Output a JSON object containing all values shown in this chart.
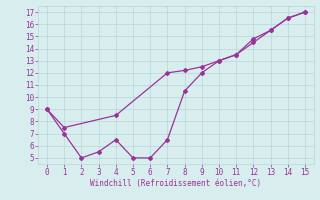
{
  "line1_x": [
    0,
    1,
    2,
    3,
    4,
    5,
    6,
    7,
    8,
    9,
    10,
    11,
    12,
    13,
    14,
    15
  ],
  "line1_y": [
    9,
    7,
    5,
    5.5,
    6.5,
    5,
    5,
    6.5,
    10.5,
    12,
    13,
    13.5,
    14.5,
    15.5,
    16.5,
    17
  ],
  "line2_x": [
    0,
    1,
    4,
    7,
    8,
    9,
    10,
    11,
    12,
    13,
    14,
    15
  ],
  "line2_y": [
    9,
    7.5,
    8.5,
    12,
    12.2,
    12.5,
    13,
    13.5,
    14.8,
    15.5,
    16.5,
    17
  ],
  "line_color": "#993399",
  "marker": "D",
  "markersize": 2,
  "xlabel": "Windchill (Refroidissement éolien,°C)",
  "xlim": [
    -0.5,
    15.5
  ],
  "ylim": [
    4.5,
    17.5
  ],
  "yticks": [
    5,
    6,
    7,
    8,
    9,
    10,
    11,
    12,
    13,
    14,
    15,
    16,
    17
  ],
  "xticks": [
    0,
    1,
    2,
    3,
    4,
    5,
    6,
    7,
    8,
    9,
    10,
    11,
    12,
    13,
    14,
    15
  ],
  "bg_color": "#d8eeee",
  "grid_color": "#b8d8d8",
  "tick_color": "#993399",
  "label_color": "#993399",
  "linewidth": 0.9,
  "tick_fontsize": 5.5,
  "xlabel_fontsize": 5.5
}
